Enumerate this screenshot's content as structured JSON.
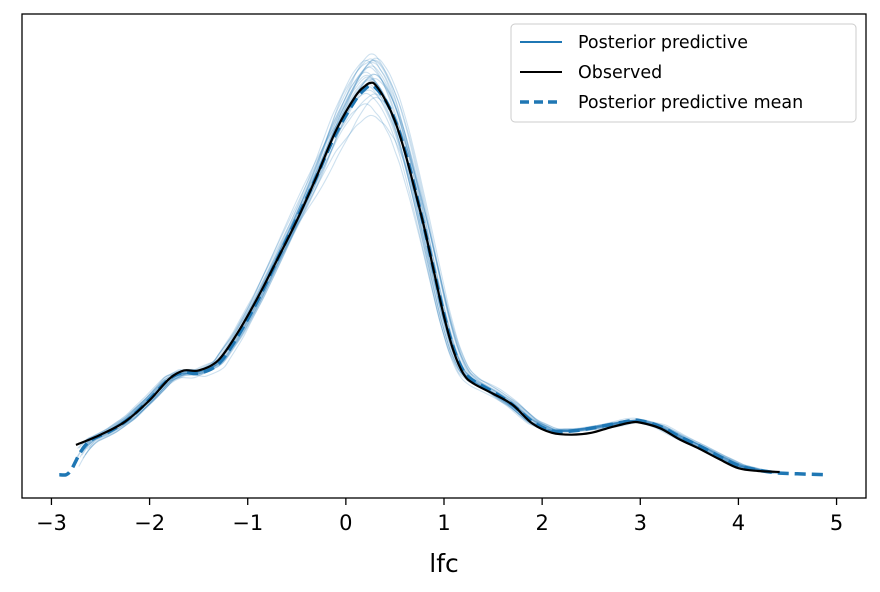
{
  "chart_data": {
    "type": "line",
    "title": "",
    "xlabel": "lfc",
    "ylabel": "",
    "xlim": [
      -3.3,
      5.3
    ],
    "ylim": [
      0,
      0.52
    ],
    "x_ticks": [
      -3,
      -2,
      -1,
      0,
      1,
      2,
      3,
      4,
      5
    ],
    "x_tick_labels": [
      "−3",
      "−2",
      "−1",
      "0",
      "1",
      "2",
      "3",
      "4",
      "5"
    ],
    "y_ticks_visible": false,
    "grid": false,
    "legend_position": "top-right",
    "colors": {
      "posterior_predictive": "#1f77b4",
      "observed": "#000000",
      "posterior_predictive_mean": "#1f77b4"
    },
    "legend": [
      {
        "label": "Posterior predictive",
        "style": "solid",
        "color": "#1f77b4"
      },
      {
        "label": "Observed",
        "style": "solid",
        "color": "#000000"
      },
      {
        "label": "Posterior predictive mean",
        "style": "dashed",
        "color": "#1f77b4"
      }
    ],
    "series": [
      {
        "name": "Observed",
        "style": "solid",
        "color": "#000000",
        "x": [
          -2.75,
          -2.5,
          -2.25,
          -2.0,
          -1.8,
          -1.65,
          -1.5,
          -1.3,
          -1.1,
          -0.9,
          -0.7,
          -0.5,
          -0.3,
          -0.1,
          0.1,
          0.2,
          0.25,
          0.3,
          0.4,
          0.5,
          0.6,
          0.7,
          0.8,
          0.9,
          1.0,
          1.1,
          1.2,
          1.3,
          1.5,
          1.7,
          1.9,
          2.1,
          2.3,
          2.5,
          2.7,
          2.9,
          3.0,
          3.2,
          3.4,
          3.6,
          3.8,
          4.0,
          4.2,
          4.42
        ],
        "y": [
          0.057,
          0.068,
          0.082,
          0.105,
          0.128,
          0.137,
          0.137,
          0.148,
          0.178,
          0.215,
          0.256,
          0.298,
          0.345,
          0.395,
          0.432,
          0.443,
          0.446,
          0.444,
          0.428,
          0.405,
          0.372,
          0.332,
          0.29,
          0.242,
          0.195,
          0.157,
          0.133,
          0.123,
          0.112,
          0.1,
          0.08,
          0.07,
          0.068,
          0.07,
          0.076,
          0.081,
          0.081,
          0.075,
          0.063,
          0.053,
          0.042,
          0.032,
          0.029,
          0.028
        ]
      },
      {
        "name": "Posterior predictive mean",
        "style": "dashed",
        "color": "#1f77b4",
        "x": [
          -2.92,
          -2.85,
          -2.8,
          -2.75,
          -2.7,
          -2.6,
          -2.4,
          -2.2,
          -2.0,
          -1.8,
          -1.65,
          -1.5,
          -1.3,
          -1.1,
          -0.9,
          -0.7,
          -0.5,
          -0.3,
          -0.1,
          0.1,
          0.2,
          0.25,
          0.3,
          0.4,
          0.5,
          0.6,
          0.7,
          0.8,
          0.9,
          1.0,
          1.1,
          1.2,
          1.3,
          1.5,
          1.7,
          1.9,
          2.1,
          2.3,
          2.5,
          2.7,
          2.9,
          3.0,
          3.2,
          3.4,
          3.6,
          3.8,
          4.0,
          4.2,
          4.4,
          4.6,
          4.9
        ],
        "y": [
          0.025,
          0.025,
          0.03,
          0.04,
          0.05,
          0.062,
          0.072,
          0.086,
          0.106,
          0.128,
          0.135,
          0.134,
          0.144,
          0.174,
          0.212,
          0.256,
          0.3,
          0.345,
          0.392,
          0.428,
          0.44,
          0.443,
          0.441,
          0.428,
          0.406,
          0.374,
          0.334,
          0.29,
          0.243,
          0.197,
          0.16,
          0.136,
          0.126,
          0.114,
          0.1,
          0.082,
          0.072,
          0.072,
          0.075,
          0.079,
          0.083,
          0.083,
          0.077,
          0.066,
          0.056,
          0.045,
          0.035,
          0.03,
          0.027,
          0.026,
          0.025
        ]
      }
    ],
    "posterior_predictive_draws": {
      "name": "Posterior predictive",
      "style": "solid",
      "color": "#1f77b4",
      "count": 25,
      "peak_range": [
        0.41,
        0.49
      ],
      "x_range": [
        -2.75,
        4.45
      ]
    }
  }
}
